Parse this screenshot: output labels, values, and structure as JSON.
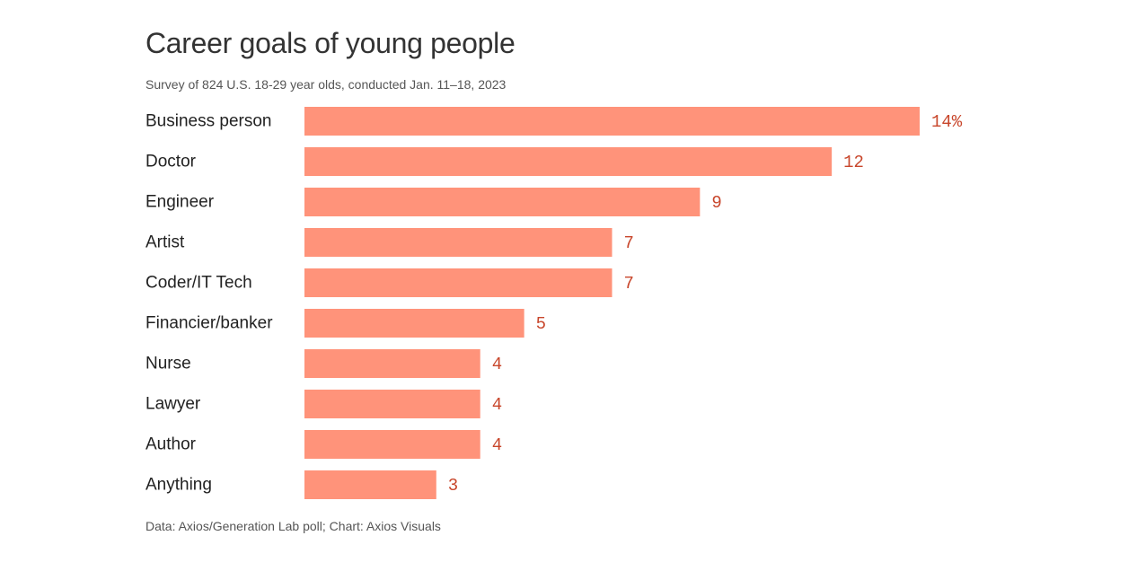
{
  "title": "Career goals of young people",
  "subtitle": "Survey of 824 U.S. 18-29 year olds, conducted Jan. 11–18, 2023",
  "footer": "Data: Axios/Generation Lab poll; Chart: Axios Visuals",
  "colors": {
    "bar": "#ff937a",
    "value_label": "#c8462b"
  },
  "chart_data": {
    "type": "bar",
    "orientation": "horizontal",
    "categories": [
      "Business person",
      "Doctor",
      "Engineer",
      "Artist",
      "Coder/IT Tech",
      "Financier/banker",
      "Nurse",
      "Lawyer",
      "Author",
      "Anything"
    ],
    "values": [
      14,
      12,
      9,
      7,
      7,
      5,
      4,
      4,
      4,
      3
    ],
    "value_labels": [
      "14%",
      "12",
      "9",
      "7",
      "7",
      "5",
      "4",
      "4",
      "4",
      "3"
    ],
    "unit": "%",
    "xlim": [
      0,
      14
    ],
    "grid": false,
    "legend": "none"
  }
}
